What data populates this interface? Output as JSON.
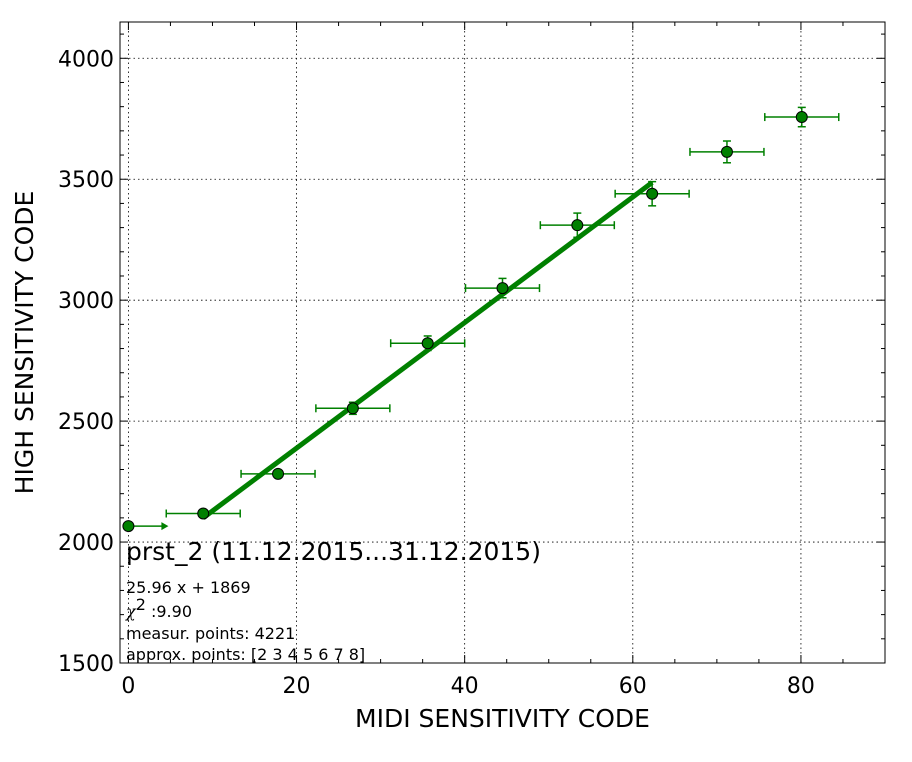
{
  "chart_data": {
    "type": "scatter",
    "title": "",
    "xlabel": "MIDI SENSITIVITY CODE",
    "ylabel": "HIGH SENSITIVITY CODE",
    "xlim": [
      -1,
      90
    ],
    "ylim": [
      1500,
      4150
    ],
    "xticks": [
      0,
      20,
      40,
      60,
      80
    ],
    "yticks": [
      1500,
      2000,
      2500,
      3000,
      3500,
      4000
    ],
    "xtick_labels": [
      "0",
      "20",
      "40",
      "60",
      "80"
    ],
    "ytick_labels": [
      "1500",
      "2000",
      "2500",
      "3000",
      "3500",
      "4000"
    ],
    "grid": true,
    "colors": {
      "series": "#008000",
      "fit": "#008000",
      "marker_edge": "#000000"
    },
    "points": [
      {
        "x": 0,
        "y": 2066,
        "xerr": 0,
        "yerr": 0,
        "upper_limit_arrow": true
      },
      {
        "x": 8.9,
        "y": 2118,
        "xerr": 4.4,
        "yerr": 10,
        "upper_limit_arrow": false
      },
      {
        "x": 17.8,
        "y": 2282,
        "xerr": 4.4,
        "yerr": 15,
        "upper_limit_arrow": false
      },
      {
        "x": 26.7,
        "y": 2553,
        "xerr": 4.4,
        "yerr": 25,
        "upper_limit_arrow": false
      },
      {
        "x": 35.6,
        "y": 2822,
        "xerr": 4.4,
        "yerr": 30,
        "upper_limit_arrow": false
      },
      {
        "x": 44.5,
        "y": 3050,
        "xerr": 4.4,
        "yerr": 40,
        "upper_limit_arrow": false
      },
      {
        "x": 53.4,
        "y": 3310,
        "xerr": 4.4,
        "yerr": 50,
        "upper_limit_arrow": false
      },
      {
        "x": 62.3,
        "y": 3440,
        "xerr": 4.4,
        "yerr": 50,
        "upper_limit_arrow": false
      },
      {
        "x": 71.2,
        "y": 3613,
        "xerr": 4.4,
        "yerr": 45,
        "upper_limit_arrow": false
      },
      {
        "x": 80.1,
        "y": 3757,
        "xerr": 4.4,
        "yerr": 40,
        "upper_limit_arrow": false
      }
    ],
    "fit": {
      "slope": 25.96,
      "intercept": 1869,
      "x_range": [
        8.9,
        62.3
      ]
    },
    "annotation": {
      "title": "prst_2 (11.12.2015...31.12.2015)",
      "equation": "25.96 x + 1869",
      "chi_symbol": "χ",
      "chi_sup": "2",
      "chi_value": " :9.90",
      "measur_points": "measur. points: 4221",
      "approx_points": "approx. points: [2 3 4 5 6 7 8]"
    }
  }
}
